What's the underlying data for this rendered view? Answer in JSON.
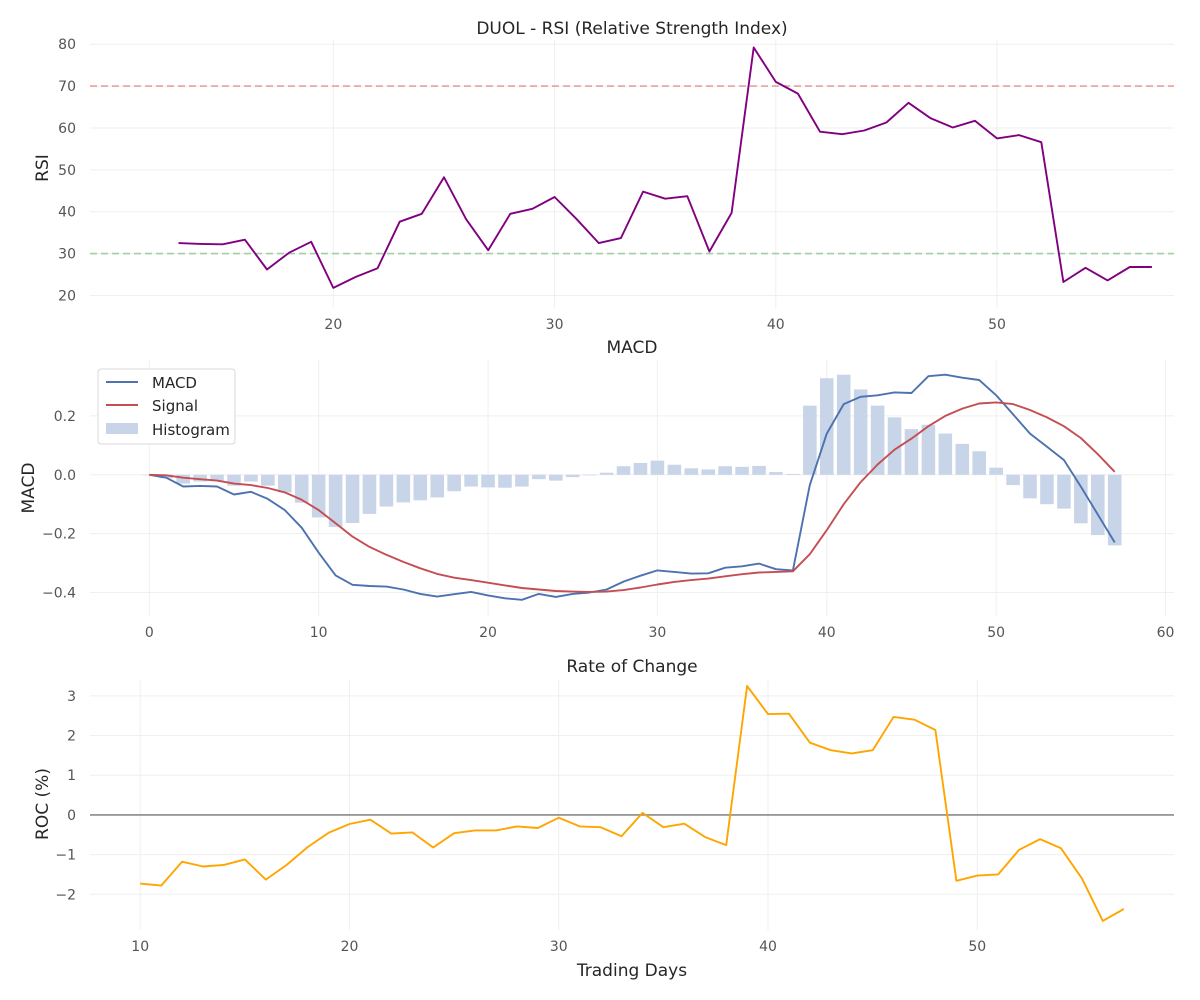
{
  "chart_data": [
    {
      "type": "line",
      "title": "DUOL - RSI (Relative Strength Index)",
      "xlabel": "",
      "ylabel": "RSI",
      "xlim": [
        9,
        58
      ],
      "ylim": [
        17,
        81
      ],
      "xticks": [
        20,
        30,
        40,
        50
      ],
      "yticks": [
        20,
        30,
        40,
        50,
        60,
        70,
        80
      ],
      "grid": true,
      "reference_lines": [
        {
          "y": 70,
          "color": "#e8a0a0",
          "style": "dashed"
        },
        {
          "y": 30,
          "color": "#a3d0a3",
          "style": "dashed"
        }
      ],
      "series": [
        {
          "color": "#800080",
          "x": [
            13,
            14,
            15,
            16,
            17,
            18,
            19,
            20,
            21,
            22,
            23,
            24,
            25,
            26,
            27,
            28,
            29,
            30,
            31,
            32,
            33,
            34,
            35,
            36,
            37,
            38,
            39,
            40,
            41,
            42,
            43,
            44,
            45,
            46,
            47,
            48,
            49,
            50,
            51,
            52,
            53,
            54,
            55,
            56,
            57
          ],
          "values": [
            32.5,
            32.3,
            32.2,
            33.3,
            26.2,
            30.2,
            32.8,
            21.8,
            24.4,
            26.5,
            37.6,
            39.5,
            48.2,
            38.2,
            30.8,
            39.5,
            40.7,
            43.5,
            38.2,
            32.5,
            33.7,
            44.8,
            43.1,
            43.7,
            30.5,
            39.7,
            79.2,
            71.0,
            68.2,
            59.1,
            58.5,
            59.4,
            61.3,
            66.0,
            62.3,
            60.1,
            61.7,
            57.5,
            58.3,
            56.6,
            23.2,
            26.6,
            23.6,
            26.8,
            26.8
          ]
        }
      ]
    },
    {
      "type": "line",
      "title": "MACD",
      "xlabel": "",
      "ylabel": "MACD",
      "xlim": [
        -3.5,
        60.5
      ],
      "ylim": [
        -0.48,
        0.39
      ],
      "xticks": [
        0,
        10,
        20,
        30,
        40,
        50,
        60
      ],
      "yticks": [
        -0.4,
        -0.2,
        0.0,
        0.2
      ],
      "ytick_labels": [
        "−0.4",
        "−0.2",
        "0.0",
        "0.2"
      ],
      "grid": true,
      "legend": "top-left",
      "series": [
        {
          "name": "MACD",
          "color": "#4c72b0",
          "values": [
            0.0,
            -0.01,
            -0.04,
            -0.038,
            -0.04,
            -0.067,
            -0.058,
            -0.082,
            -0.12,
            -0.18,
            -0.265,
            -0.342,
            -0.374,
            -0.378,
            -0.38,
            -0.39,
            -0.405,
            -0.414,
            -0.406,
            -0.398,
            -0.41,
            -0.42,
            -0.425,
            -0.405,
            -0.415,
            -0.405,
            -0.4,
            -0.39,
            -0.363,
            -0.343,
            -0.325,
            -0.33,
            -0.336,
            -0.335,
            -0.316,
            -0.311,
            -0.302,
            -0.321,
            -0.325,
            -0.035,
            0.14,
            0.24,
            0.265,
            0.27,
            0.28,
            0.278,
            0.335,
            0.34,
            0.33,
            0.322,
            0.27,
            0.205,
            0.14,
            0.095,
            0.05,
            -0.04,
            -0.135,
            -0.23
          ]
        },
        {
          "name": "Signal",
          "color": "#c44e52",
          "values": [
            0.0,
            -0.002,
            -0.01,
            -0.015,
            -0.02,
            -0.03,
            -0.035,
            -0.045,
            -0.06,
            -0.085,
            -0.12,
            -0.165,
            -0.21,
            -0.245,
            -0.272,
            -0.296,
            -0.318,
            -0.337,
            -0.35,
            -0.358,
            -0.367,
            -0.376,
            -0.385,
            -0.39,
            -0.395,
            -0.397,
            -0.398,
            -0.397,
            -0.392,
            -0.383,
            -0.373,
            -0.364,
            -0.358,
            -0.353,
            -0.345,
            -0.338,
            -0.332,
            -0.33,
            -0.328,
            -0.27,
            -0.188,
            -0.1,
            -0.025,
            0.035,
            0.085,
            0.123,
            0.165,
            0.2,
            0.225,
            0.242,
            0.246,
            0.24,
            0.22,
            0.195,
            0.165,
            0.125,
            0.07,
            0.01
          ]
        }
      ],
      "histogram": {
        "name": "Histogram",
        "color": "#c8d4e8",
        "values": [
          0.0,
          -0.012,
          -0.03,
          -0.023,
          -0.02,
          -0.037,
          -0.023,
          -0.037,
          -0.06,
          -0.095,
          -0.145,
          -0.177,
          -0.164,
          -0.133,
          -0.108,
          -0.094,
          -0.087,
          -0.077,
          -0.056,
          -0.04,
          -0.043,
          -0.044,
          -0.04,
          -0.015,
          -0.02,
          -0.008,
          -0.002,
          0.007,
          0.029,
          0.04,
          0.048,
          0.034,
          0.022,
          0.018,
          0.029,
          0.027,
          0.03,
          0.009,
          0.003,
          0.235,
          0.328,
          0.34,
          0.29,
          0.235,
          0.195,
          0.155,
          0.17,
          0.14,
          0.105,
          0.08,
          0.024,
          -0.035,
          -0.08,
          -0.1,
          -0.115,
          -0.165,
          -0.205,
          -0.24
        ]
      }
    },
    {
      "type": "line",
      "title": "Rate of Change",
      "xlabel": "Trading Days",
      "ylabel": "ROC (%)",
      "xlim": [
        7.6,
        59.4
      ],
      "ylim": [
        -2.9,
        3.4
      ],
      "xticks": [
        10,
        20,
        30,
        40,
        50
      ],
      "yticks": [
        -2,
        -1,
        0,
        1,
        2,
        3
      ],
      "ytick_labels": [
        "−2",
        "−1",
        "0",
        "1",
        "2",
        "3"
      ],
      "grid": true,
      "reference_lines": [
        {
          "y": 0,
          "color": "#8a8a8a",
          "style": "solid"
        }
      ],
      "series": [
        {
          "color": "#ffa500",
          "x": [
            10,
            11,
            12,
            13,
            14,
            15,
            16,
            17,
            18,
            19,
            20,
            21,
            22,
            23,
            24,
            25,
            26,
            27,
            28,
            29,
            30,
            31,
            32,
            33,
            34,
            35,
            36,
            37,
            38,
            39,
            40,
            41,
            42,
            43,
            44,
            45,
            46,
            47,
            48,
            49,
            50,
            51,
            52,
            53,
            54,
            55,
            56,
            57
          ],
          "values": [
            -1.73,
            -1.78,
            -1.18,
            -1.3,
            -1.26,
            -1.12,
            -1.63,
            -1.26,
            -0.81,
            -0.45,
            -0.23,
            -0.12,
            -0.47,
            -0.44,
            -0.82,
            -0.46,
            -0.39,
            -0.39,
            -0.29,
            -0.33,
            -0.07,
            -0.29,
            -0.31,
            -0.54,
            0.05,
            -0.31,
            -0.22,
            -0.56,
            -0.76,
            3.25,
            2.54,
            2.55,
            1.82,
            1.63,
            1.55,
            1.63,
            2.47,
            2.4,
            2.14,
            -1.66,
            -1.53,
            -1.5,
            -0.88,
            -0.61,
            -0.84,
            -1.6,
            -2.67,
            -2.37
          ]
        }
      ]
    }
  ]
}
